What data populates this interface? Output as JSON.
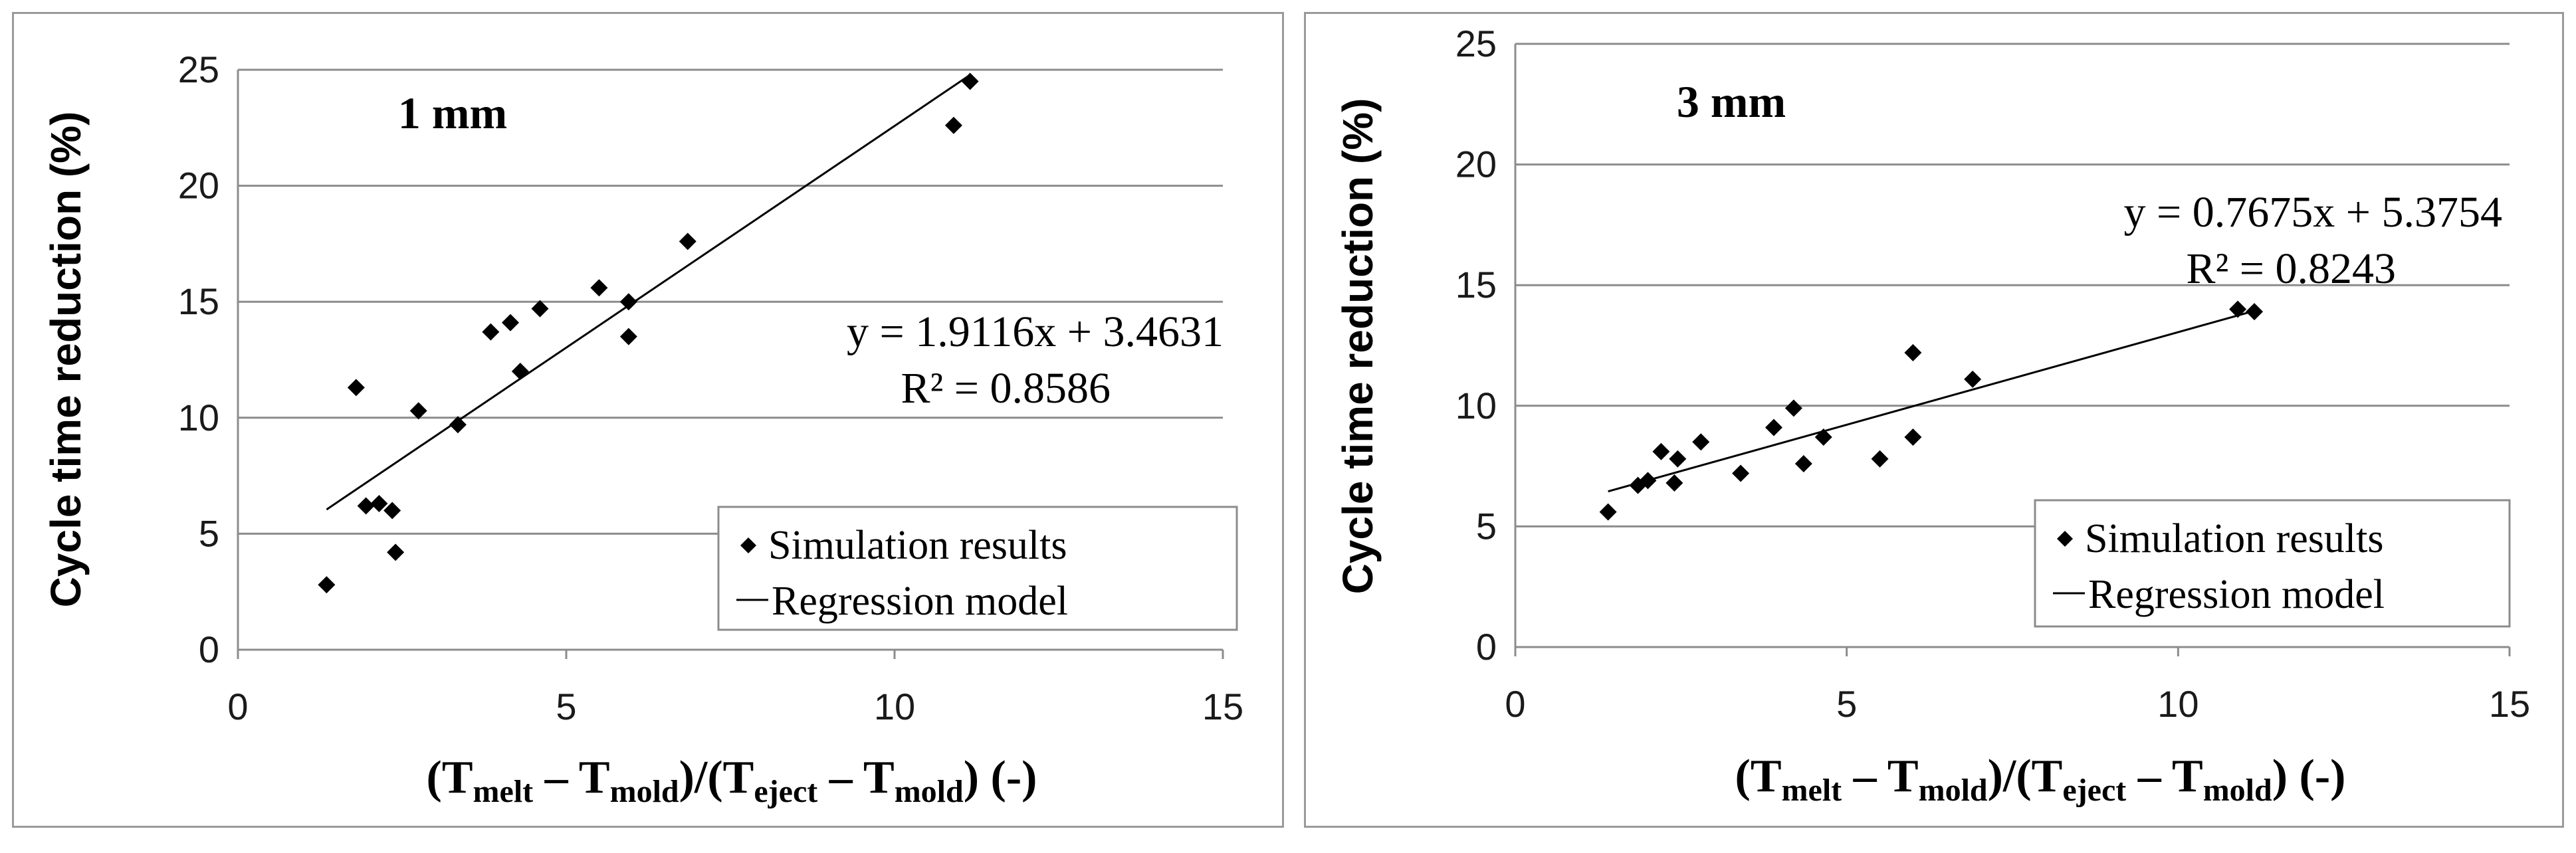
{
  "chart_data": [
    {
      "type": "scatter",
      "title": "1 mm",
      "xlabel": {
        "parts": [
          {
            "t": "(T"
          },
          {
            "t": "melt",
            "sub": true
          },
          {
            "t": " – T"
          },
          {
            "t": "mold",
            "sub": true
          },
          {
            "t": ")/(T"
          },
          {
            "t": "eject",
            "sub": true
          },
          {
            "t": " – T"
          },
          {
            "t": "mold",
            "sub": true
          },
          {
            "t": ")  (-)"
          }
        ]
      },
      "ylabel": "Cycle time reduction (%)",
      "xlim": [
        0,
        15
      ],
      "ylim": [
        0,
        25
      ],
      "xticks": [
        0,
        5,
        10,
        15
      ],
      "yticks": [
        0,
        5,
        10,
        15,
        20,
        25
      ],
      "grid": "horizontal",
      "series": [
        {
          "name": "Simulation results",
          "marker": "diamond",
          "points": [
            [
              1.35,
              2.8
            ],
            [
              1.8,
              11.3
            ],
            [
              1.95,
              6.2
            ],
            [
              2.15,
              6.3
            ],
            [
              2.35,
              6.0
            ],
            [
              2.4,
              4.2
            ],
            [
              2.75,
              10.3
            ],
            [
              3.35,
              9.7
            ],
            [
              3.85,
              13.7
            ],
            [
              4.15,
              14.1
            ],
            [
              4.3,
              12.0
            ],
            [
              4.6,
              14.7
            ],
            [
              5.5,
              15.6
            ],
            [
              5.95,
              13.5
            ],
            [
              5.95,
              15.0
            ],
            [
              6.85,
              17.6
            ],
            [
              10.9,
              22.6
            ],
            [
              11.15,
              24.5
            ]
          ]
        },
        {
          "name": "Regression model",
          "line": true,
          "slope": 1.9116,
          "intercept": 3.4631,
          "x_range": [
            1.35,
            11.15
          ]
        }
      ],
      "equation": "y = 1.9116x + 3.4631",
      "r2": "R² = 0.8586",
      "legend": "bottom-right"
    },
    {
      "type": "scatter",
      "title": "3 mm",
      "xlabel": {
        "parts": [
          {
            "t": "(T"
          },
          {
            "t": "melt",
            "sub": true
          },
          {
            "t": " – T"
          },
          {
            "t": "mold",
            "sub": true
          },
          {
            "t": ")/(T"
          },
          {
            "t": "eject",
            "sub": true
          },
          {
            "t": " – T"
          },
          {
            "t": "mold",
            "sub": true
          },
          {
            "t": ")  (-)"
          }
        ]
      },
      "ylabel": "Cycle time reduction (%)",
      "xlim": [
        0,
        15
      ],
      "ylim": [
        0,
        25
      ],
      "xticks": [
        0,
        5,
        10,
        15
      ],
      "yticks": [
        0,
        5,
        10,
        15,
        20,
        25
      ],
      "grid": "horizontal",
      "series": [
        {
          "name": "Simulation results",
          "marker": "diamond",
          "points": [
            [
              1.4,
              5.6
            ],
            [
              1.85,
              6.7
            ],
            [
              2.0,
              6.9
            ],
            [
              2.2,
              8.1
            ],
            [
              2.4,
              6.8
            ],
            [
              2.45,
              7.8
            ],
            [
              2.8,
              8.5
            ],
            [
              3.4,
              7.2
            ],
            [
              3.9,
              9.1
            ],
            [
              4.2,
              9.9
            ],
            [
              4.35,
              7.6
            ],
            [
              4.65,
              8.7
            ],
            [
              5.5,
              7.8
            ],
            [
              6.0,
              8.7
            ],
            [
              6.0,
              12.2
            ],
            [
              6.9,
              11.1
            ],
            [
              10.9,
              14.0
            ],
            [
              11.15,
              13.9
            ]
          ]
        },
        {
          "name": "Regression model",
          "line": true,
          "slope": 0.7675,
          "intercept": 5.3754,
          "x_range": [
            1.4,
            11.15
          ]
        }
      ],
      "equation": "y = 0.7675x + 5.3754",
      "r2": "R² = 0.8243",
      "legend": "bottom-right"
    }
  ]
}
